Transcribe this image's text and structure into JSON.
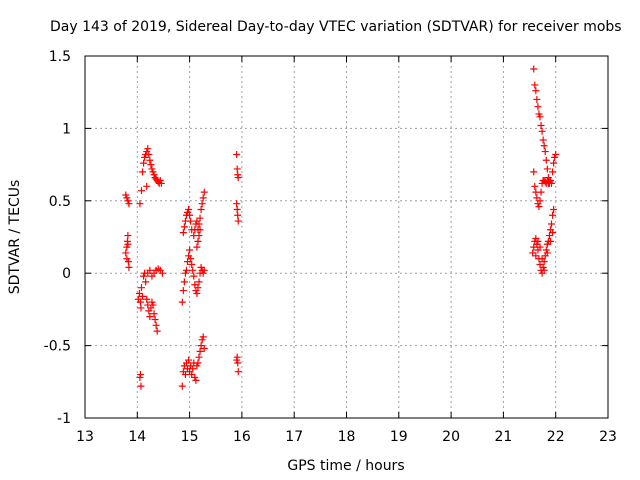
{
  "chart_data": {
    "type": "scatter",
    "title": "Day 143 of 2019, Sidereal Day-to-day VTEC variation (SDTVAR) for receiver mobs",
    "xlabel": "GPS time / hours",
    "ylabel": "SDTVAR / TECUs",
    "xlim": [
      13,
      23
    ],
    "ylim": [
      -1,
      1.5
    ],
    "xticks": [
      "13",
      "14",
      "15",
      "16",
      "17",
      "18",
      "19",
      "20",
      "21",
      "22",
      "23"
    ],
    "yticks": [
      "-1",
      "-0.5",
      "0",
      "0.5",
      "1",
      "1.5"
    ],
    "xtick_values": [
      13,
      14,
      15,
      16,
      17,
      18,
      19,
      20,
      21,
      22,
      23
    ],
    "ytick_values": [
      -1,
      -0.5,
      0,
      0.5,
      1,
      1.5
    ],
    "grid": true,
    "marker": "plus",
    "color": "#ff0000",
    "series": [
      {
        "name": "SDTVAR",
        "points": [
          [
            13.78,
            0.54
          ],
          [
            13.8,
            0.52
          ],
          [
            13.82,
            0.5
          ],
          [
            13.84,
            0.48
          ],
          [
            13.78,
            0.14
          ],
          [
            13.8,
            0.18
          ],
          [
            13.81,
            0.22
          ],
          [
            13.82,
            0.26
          ],
          [
            13.83,
            0.08
          ],
          [
            13.84,
            0.04
          ],
          [
            13.8,
            0.1
          ],
          [
            13.82,
            0.2
          ],
          [
            14.02,
            -0.18
          ],
          [
            14.04,
            -0.14
          ],
          [
            14.06,
            -0.2
          ],
          [
            14.08,
            -0.1
          ],
          [
            14.1,
            -0.16
          ],
          [
            14.07,
            -0.24
          ],
          [
            14.12,
            -0.02
          ],
          [
            14.14,
            0.0
          ],
          [
            14.16,
            -0.06
          ],
          [
            14.18,
            -0.18
          ],
          [
            14.2,
            -0.22
          ],
          [
            14.22,
            -0.26
          ],
          [
            14.24,
            -0.3
          ],
          [
            14.26,
            -0.24
          ],
          [
            14.28,
            -0.2
          ],
          [
            14.3,
            -0.22
          ],
          [
            14.32,
            -0.28
          ],
          [
            14.34,
            -0.32
          ],
          [
            14.36,
            -0.36
          ],
          [
            14.38,
            -0.4
          ],
          [
            14.2,
            0.0
          ],
          [
            14.24,
            0.02
          ],
          [
            14.28,
            -0.02
          ],
          [
            14.32,
            0.0
          ],
          [
            14.36,
            0.02
          ],
          [
            14.4,
            0.03
          ],
          [
            14.44,
            0.02
          ],
          [
            14.48,
            0.0
          ],
          [
            14.05,
            -0.72
          ],
          [
            14.06,
            -0.7
          ],
          [
            14.07,
            -0.78
          ],
          [
            14.05,
            0.48
          ],
          [
            14.08,
            0.57
          ],
          [
            14.1,
            0.7
          ],
          [
            14.12,
            0.76
          ],
          [
            14.14,
            0.8
          ],
          [
            14.16,
            0.82
          ],
          [
            14.18,
            0.84
          ],
          [
            14.2,
            0.86
          ],
          [
            14.22,
            0.82
          ],
          [
            14.24,
            0.78
          ],
          [
            14.26,
            0.75
          ],
          [
            14.28,
            0.72
          ],
          [
            14.3,
            0.7
          ],
          [
            14.32,
            0.68
          ],
          [
            14.34,
            0.66
          ],
          [
            14.36,
            0.65
          ],
          [
            14.38,
            0.64
          ],
          [
            14.4,
            0.63
          ],
          [
            14.42,
            0.62
          ],
          [
            14.44,
            0.64
          ],
          [
            14.46,
            0.62
          ],
          [
            14.18,
            0.6
          ],
          [
            14.86,
            -0.78
          ],
          [
            14.88,
            -0.68
          ],
          [
            14.9,
            -0.64
          ],
          [
            14.92,
            -0.7
          ],
          [
            14.94,
            -0.62
          ],
          [
            14.96,
            -0.66
          ],
          [
            14.98,
            -0.6
          ],
          [
            15.0,
            -0.68
          ],
          [
            15.02,
            -0.64
          ],
          [
            15.04,
            -0.7
          ],
          [
            15.06,
            -0.66
          ],
          [
            15.08,
            -0.62
          ],
          [
            15.1,
            -0.72
          ],
          [
            15.12,
            -0.74
          ],
          [
            15.14,
            -0.64
          ],
          [
            15.16,
            -0.62
          ],
          [
            15.18,
            -0.58
          ],
          [
            15.2,
            -0.54
          ],
          [
            15.22,
            -0.5
          ],
          [
            15.24,
            -0.46
          ],
          [
            15.26,
            -0.44
          ],
          [
            15.28,
            -0.52
          ],
          [
            14.86,
            -0.2
          ],
          [
            14.88,
            -0.12
          ],
          [
            14.9,
            -0.06
          ],
          [
            14.92,
            0.0
          ],
          [
            14.94,
            0.02
          ],
          [
            14.96,
            0.08
          ],
          [
            14.98,
            0.12
          ],
          [
            15.0,
            0.16
          ],
          [
            15.02,
            0.1
          ],
          [
            15.04,
            0.06
          ],
          [
            15.06,
            0.02
          ],
          [
            15.08,
            -0.02
          ],
          [
            15.1,
            -0.08
          ],
          [
            15.12,
            -0.12
          ],
          [
            15.14,
            -0.14
          ],
          [
            15.16,
            -0.1
          ],
          [
            15.18,
            -0.06
          ],
          [
            15.2,
            0.0
          ],
          [
            15.22,
            0.04
          ],
          [
            15.24,
            0.02
          ],
          [
            15.26,
            0.0
          ],
          [
            15.28,
            0.02
          ],
          [
            14.88,
            0.28
          ],
          [
            14.9,
            0.32
          ],
          [
            14.92,
            0.36
          ],
          [
            14.94,
            0.4
          ],
          [
            14.96,
            0.42
          ],
          [
            14.98,
            0.44
          ],
          [
            15.0,
            0.4
          ],
          [
            15.02,
            0.36
          ],
          [
            15.04,
            0.3
          ],
          [
            15.08,
            0.26
          ],
          [
            15.1,
            0.3
          ],
          [
            15.12,
            0.34
          ],
          [
            15.14,
            0.36
          ],
          [
            15.16,
            0.3
          ],
          [
            15.18,
            0.34
          ],
          [
            15.2,
            0.38
          ],
          [
            15.22,
            0.44
          ],
          [
            15.24,
            0.48
          ],
          [
            15.26,
            0.52
          ],
          [
            15.28,
            0.56
          ],
          [
            15.14,
            0.18
          ],
          [
            15.16,
            0.22
          ],
          [
            15.18,
            0.26
          ],
          [
            15.2,
            0.3
          ],
          [
            15.9,
            0.82
          ],
          [
            15.91,
            0.72
          ],
          [
            15.92,
            0.68
          ],
          [
            15.93,
            0.66
          ],
          [
            15.9,
            0.48
          ],
          [
            15.91,
            0.44
          ],
          [
            15.92,
            0.4
          ],
          [
            15.93,
            0.36
          ],
          [
            15.9,
            -0.6
          ],
          [
            15.91,
            -0.58
          ],
          [
            15.92,
            -0.62
          ],
          [
            15.93,
            -0.68
          ],
          [
            21.58,
            1.41
          ],
          [
            21.6,
            1.3
          ],
          [
            21.62,
            1.26
          ],
          [
            21.64,
            1.2
          ],
          [
            21.66,
            1.15
          ],
          [
            21.68,
            1.1
          ],
          [
            21.7,
            1.08
          ],
          [
            21.72,
            1.02
          ],
          [
            21.74,
            0.98
          ],
          [
            21.76,
            0.92
          ],
          [
            21.78,
            0.88
          ],
          [
            21.8,
            0.84
          ],
          [
            21.82,
            0.78
          ],
          [
            21.84,
            0.72
          ],
          [
            21.86,
            0.66
          ],
          [
            21.88,
            0.62
          ],
          [
            21.58,
            0.7
          ],
          [
            21.6,
            0.6
          ],
          [
            21.62,
            0.56
          ],
          [
            21.64,
            0.52
          ],
          [
            21.66,
            0.48
          ],
          [
            21.68,
            0.46
          ],
          [
            21.7,
            0.5
          ],
          [
            21.72,
            0.56
          ],
          [
            21.74,
            0.62
          ],
          [
            21.76,
            0.64
          ],
          [
            21.78,
            0.64
          ],
          [
            21.8,
            0.63
          ],
          [
            21.82,
            0.62
          ],
          [
            21.84,
            0.64
          ],
          [
            21.86,
            0.62
          ],
          [
            21.88,
            0.63
          ],
          [
            21.9,
            0.64
          ],
          [
            21.92,
            0.62
          ],
          [
            21.94,
            0.7
          ],
          [
            21.96,
            0.76
          ],
          [
            21.98,
            0.8
          ],
          [
            22.0,
            0.82
          ],
          [
            21.56,
            0.14
          ],
          [
            21.58,
            0.18
          ],
          [
            21.6,
            0.22
          ],
          [
            21.62,
            0.24
          ],
          [
            21.64,
            0.2
          ],
          [
            21.66,
            0.16
          ],
          [
            21.68,
            0.1
          ],
          [
            21.7,
            0.06
          ],
          [
            21.72,
            0.02
          ],
          [
            21.74,
            0.0
          ],
          [
            21.76,
            0.04
          ],
          [
            21.78,
            0.08
          ],
          [
            21.8,
            0.12
          ],
          [
            21.82,
            0.16
          ],
          [
            21.84,
            0.2
          ],
          [
            21.86,
            0.22
          ],
          [
            21.88,
            0.26
          ],
          [
            21.9,
            0.3
          ],
          [
            21.92,
            0.34
          ],
          [
            21.94,
            0.4
          ],
          [
            21.96,
            0.44
          ],
          [
            21.62,
            0.12
          ],
          [
            21.66,
            0.22
          ],
          [
            21.7,
            0.18
          ],
          [
            21.74,
            0.1
          ],
          [
            21.78,
            0.02
          ],
          [
            21.84,
            0.14
          ],
          [
            21.9,
            0.22
          ],
          [
            21.94,
            0.28
          ]
        ]
      }
    ]
  }
}
